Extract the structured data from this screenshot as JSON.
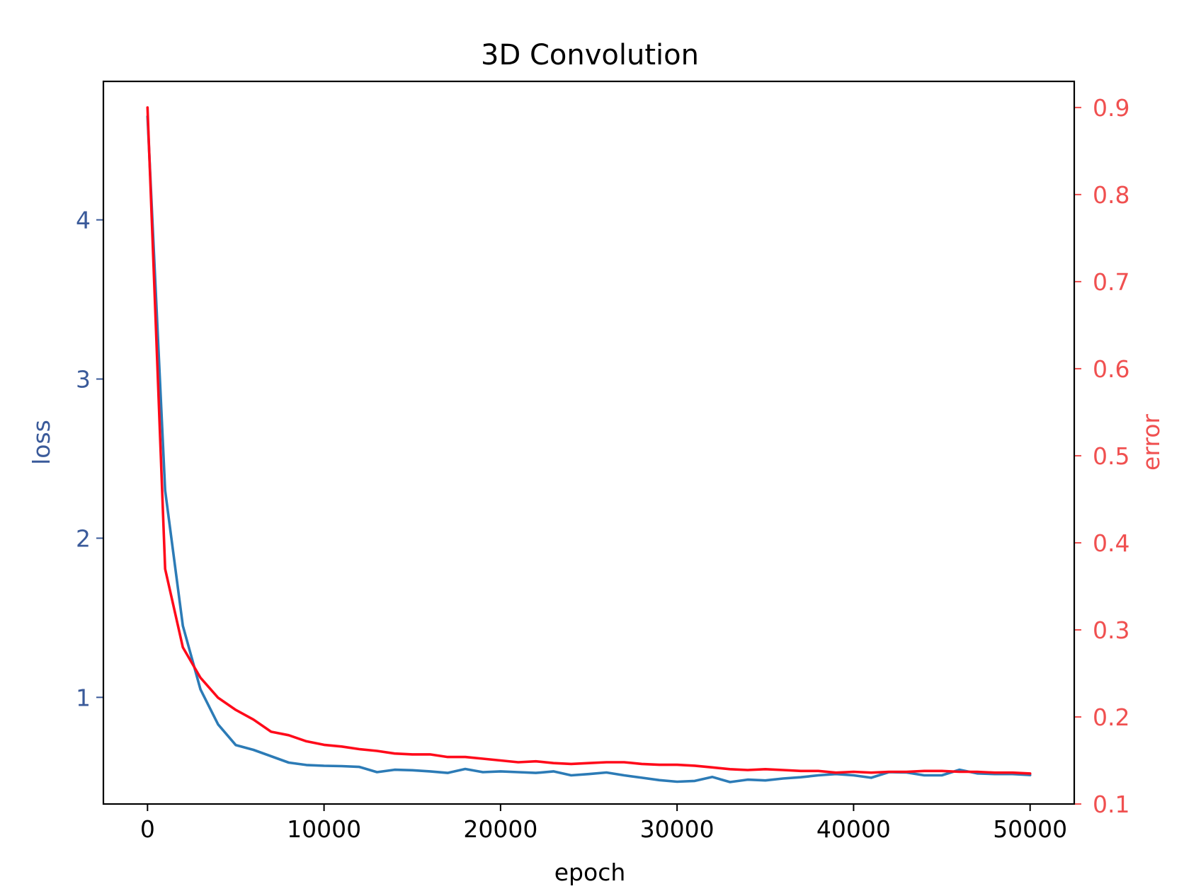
{
  "chart_data": {
    "type": "line",
    "title": "3D Convolution",
    "xlabel": "epoch",
    "ylabel_left": "loss",
    "ylabel_right": "error",
    "xlim": [
      -2500,
      52500
    ],
    "ylim_left": [
      0.33,
      4.87
    ],
    "ylim_right": [
      0.1,
      0.93
    ],
    "xticks": [
      0,
      10000,
      20000,
      30000,
      40000,
      50000
    ],
    "yticks_left": [
      1,
      2,
      3,
      4
    ],
    "yticks_right": [
      0.1,
      0.2,
      0.3,
      0.4,
      0.5,
      0.6,
      0.7,
      0.8,
      0.9
    ],
    "grid": false,
    "colors": {
      "loss": "#2c7bb6",
      "error": "#ff0a1a",
      "left_axis": "#3a5a9a",
      "right_axis": "#f05050"
    },
    "x": [
      0,
      1000,
      2000,
      3000,
      4000,
      5000,
      6000,
      7000,
      8000,
      9000,
      10000,
      11000,
      12000,
      13000,
      14000,
      15000,
      16000,
      17000,
      18000,
      19000,
      20000,
      21000,
      22000,
      23000,
      24000,
      25000,
      26000,
      27000,
      28000,
      29000,
      30000,
      31000,
      32000,
      33000,
      34000,
      35000,
      36000,
      37000,
      38000,
      39000,
      40000,
      41000,
      42000,
      43000,
      44000,
      45000,
      46000,
      47000,
      48000,
      49000,
      50000
    ],
    "series": [
      {
        "axis": "left",
        "values": [
          4.65,
          2.3,
          1.45,
          1.05,
          0.83,
          0.7,
          0.67,
          0.63,
          0.59,
          0.575,
          0.57,
          0.568,
          0.563,
          0.53,
          0.545,
          0.542,
          0.535,
          0.525,
          0.55,
          0.53,
          0.535,
          0.53,
          0.525,
          0.535,
          0.51,
          0.518,
          0.528,
          0.51,
          0.495,
          0.48,
          0.47,
          0.475,
          0.5,
          0.468,
          0.483,
          0.478,
          0.49,
          0.498,
          0.51,
          0.518,
          0.51,
          0.495,
          0.53,
          0.528,
          0.51,
          0.51,
          0.545,
          0.522,
          0.518,
          0.518,
          0.512
        ]
      },
      {
        "axis": "right",
        "values": [
          0.9,
          0.37,
          0.28,
          0.245,
          0.222,
          0.208,
          0.197,
          0.183,
          0.179,
          0.172,
          0.168,
          0.166,
          0.163,
          0.161,
          0.158,
          0.157,
          0.157,
          0.154,
          0.154,
          0.152,
          0.15,
          0.148,
          0.149,
          0.147,
          0.146,
          0.147,
          0.148,
          0.148,
          0.146,
          0.145,
          0.145,
          0.144,
          0.142,
          0.14,
          0.139,
          0.14,
          0.139,
          0.138,
          0.138,
          0.136,
          0.137,
          0.136,
          0.137,
          0.137,
          0.138,
          0.138,
          0.137,
          0.137,
          0.136,
          0.136,
          0.135
        ]
      }
    ]
  }
}
